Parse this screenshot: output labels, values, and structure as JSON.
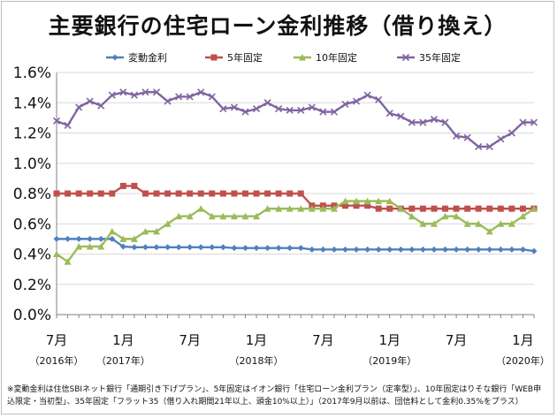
{
  "colors": {
    "variable": "#4f81bd",
    "fixed5": "#c0504d",
    "fixed10": "#9bbb59",
    "fixed35": "#8064a2",
    "grid": "#d9d9d9",
    "axis": "#808080"
  },
  "chart_data": {
    "type": "line",
    "title": "主要銀行の住宅ローン金利推移（借り換え）",
    "ylim": [
      0,
      1.6
    ],
    "yticks": [
      "0.0%",
      "0.2%",
      "0.4%",
      "0.6%",
      "0.8%",
      "1.0%",
      "1.2%",
      "1.4%",
      "1.6%"
    ],
    "x_labels": [
      {
        "index": 0,
        "month": "7月",
        "year": "（2016年）"
      },
      {
        "index": 6,
        "month": "1月",
        "year": "（2017年）"
      },
      {
        "index": 12,
        "month": "7月",
        "year": ""
      },
      {
        "index": 18,
        "month": "1月",
        "year": "（2018年）"
      },
      {
        "index": 24,
        "month": "7月",
        "year": ""
      },
      {
        "index": 30,
        "month": "1月",
        "year": "（2019年）"
      },
      {
        "index": 36,
        "month": "7月",
        "year": ""
      },
      {
        "index": 42,
        "month": "1月",
        "year": "（2020年）"
      }
    ],
    "grid": true,
    "legend_position": "top",
    "series": [
      {
        "name": "変動金利",
        "marker": "diamond",
        "values": [
          0.5,
          0.5,
          0.5,
          0.5,
          0.5,
          0.5,
          0.45,
          0.445,
          0.445,
          0.445,
          0.445,
          0.445,
          0.445,
          0.445,
          0.445,
          0.445,
          0.44,
          0.44,
          0.44,
          0.44,
          0.44,
          0.44,
          0.44,
          0.43,
          0.43,
          0.43,
          0.43,
          0.43,
          0.43,
          0.43,
          0.43,
          0.43,
          0.43,
          0.43,
          0.43,
          0.43,
          0.43,
          0.43,
          0.43,
          0.43,
          0.43,
          0.43,
          0.43,
          0.42
        ]
      },
      {
        "name": "5年固定",
        "marker": "square",
        "values": [
          0.8,
          0.8,
          0.8,
          0.8,
          0.8,
          0.8,
          0.85,
          0.85,
          0.8,
          0.8,
          0.8,
          0.8,
          0.8,
          0.8,
          0.8,
          0.8,
          0.8,
          0.8,
          0.8,
          0.8,
          0.8,
          0.8,
          0.8,
          0.72,
          0.72,
          0.72,
          0.72,
          0.72,
          0.72,
          0.7,
          0.7,
          0.7,
          0.7,
          0.7,
          0.7,
          0.7,
          0.7,
          0.7,
          0.7,
          0.7,
          0.7,
          0.7,
          0.7,
          0.7
        ]
      },
      {
        "name": "10年固定",
        "marker": "triangle",
        "values": [
          0.4,
          0.35,
          0.45,
          0.45,
          0.45,
          0.55,
          0.5,
          0.5,
          0.55,
          0.55,
          0.6,
          0.65,
          0.65,
          0.7,
          0.65,
          0.65,
          0.65,
          0.65,
          0.65,
          0.7,
          0.7,
          0.7,
          0.7,
          0.7,
          0.7,
          0.7,
          0.75,
          0.75,
          0.75,
          0.75,
          0.75,
          0.7,
          0.65,
          0.6,
          0.6,
          0.65,
          0.65,
          0.6,
          0.6,
          0.55,
          0.6,
          0.6,
          0.65,
          0.7
        ]
      },
      {
        "name": "35年固定",
        "marker": "x",
        "values": [
          1.28,
          1.25,
          1.37,
          1.41,
          1.38,
          1.45,
          1.47,
          1.45,
          1.47,
          1.47,
          1.41,
          1.44,
          1.44,
          1.47,
          1.44,
          1.36,
          1.37,
          1.34,
          1.36,
          1.4,
          1.36,
          1.35,
          1.35,
          1.37,
          1.34,
          1.34,
          1.39,
          1.41,
          1.45,
          1.42,
          1.33,
          1.31,
          1.27,
          1.27,
          1.29,
          1.27,
          1.18,
          1.17,
          1.11,
          1.11,
          1.16,
          1.2,
          1.27,
          1.27
        ]
      }
    ]
  },
  "footnote": "※変動金利は住信SBIネット銀行「通期引き下げプラン」、5年固定はイオン銀行「住宅ローン金利プラン（定率型）」、10年固定はりそな銀行「WEB申込限定・当初型」、35年固定「フラット35（借り入れ期間21年以上、頭金10%以上）」（2017年9月以前は、団信料として金利0.35%をプラス）"
}
